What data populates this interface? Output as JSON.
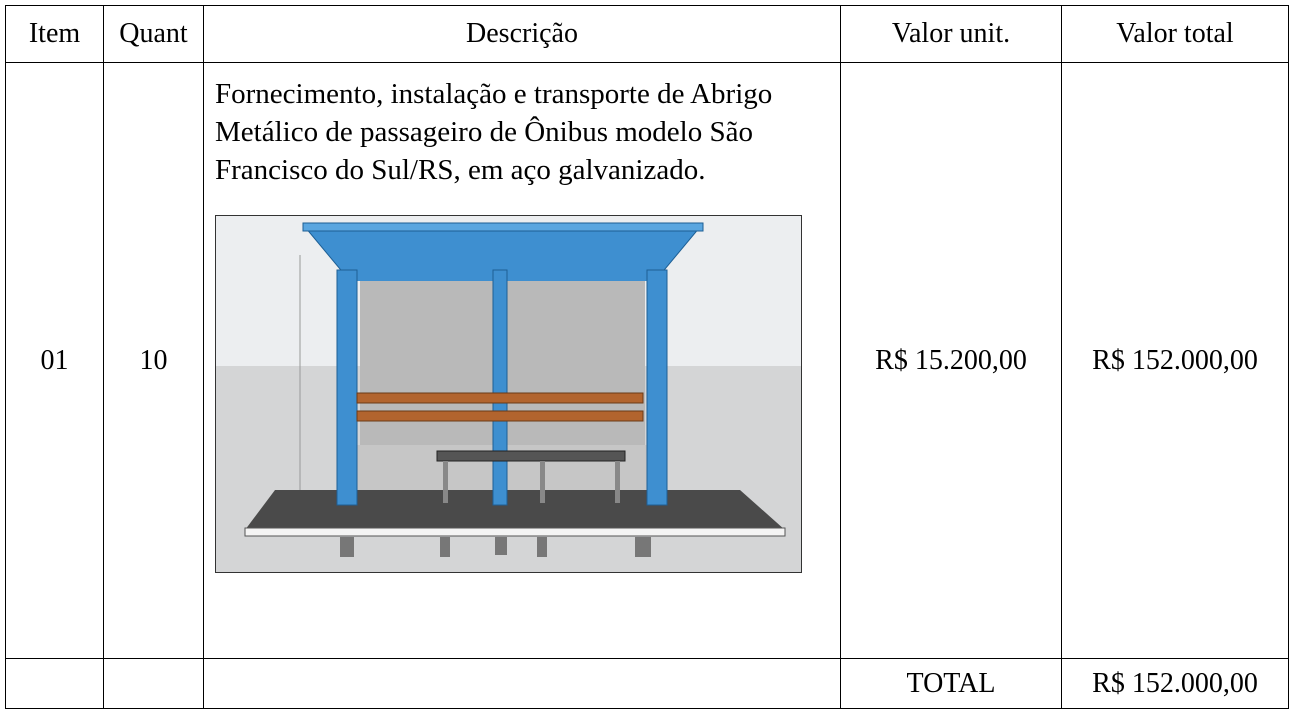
{
  "table": {
    "header": [
      "Item",
      "Quant",
      "Descrição",
      "Valor unit.",
      "Valor total"
    ],
    "rows": [
      [
        "01",
        "10",
        "Fornecimento, instalação e transporte de Abrigo Metálico de passageiro de Ônibus modelo São Francisco do Sul/RS, em aço galvanizado.",
        "R$ 15.200,00",
        "R$ 152.000,00"
      ]
    ],
    "footer": {
      "label": "TOTAL",
      "value": "R$ 152.000,00"
    }
  }
}
